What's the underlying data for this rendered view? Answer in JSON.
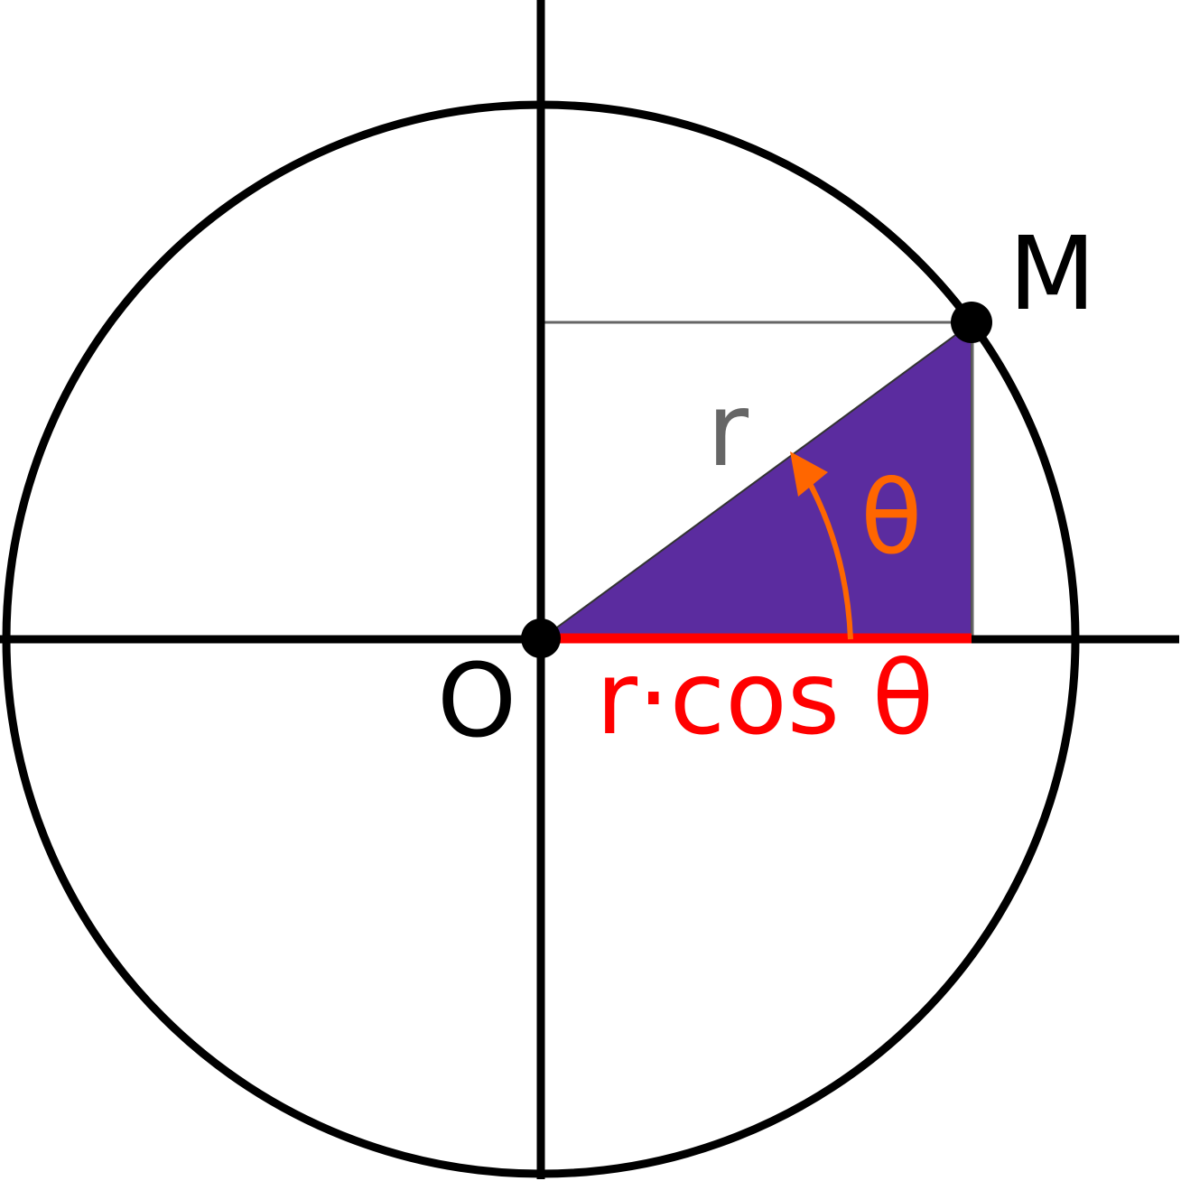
{
  "labels": {
    "point_m": "M",
    "origin": "O",
    "radius": "r",
    "angle": "θ",
    "projection": "r·cos θ"
  },
  "colors": {
    "triangle_fill": "#5b2c9f",
    "projection_line": "#ff0000",
    "angle_arrow": "#ff6600",
    "radius_label": "#666666",
    "guide_line": "#666666",
    "axes": "#000000",
    "circle": "#000000"
  }
}
